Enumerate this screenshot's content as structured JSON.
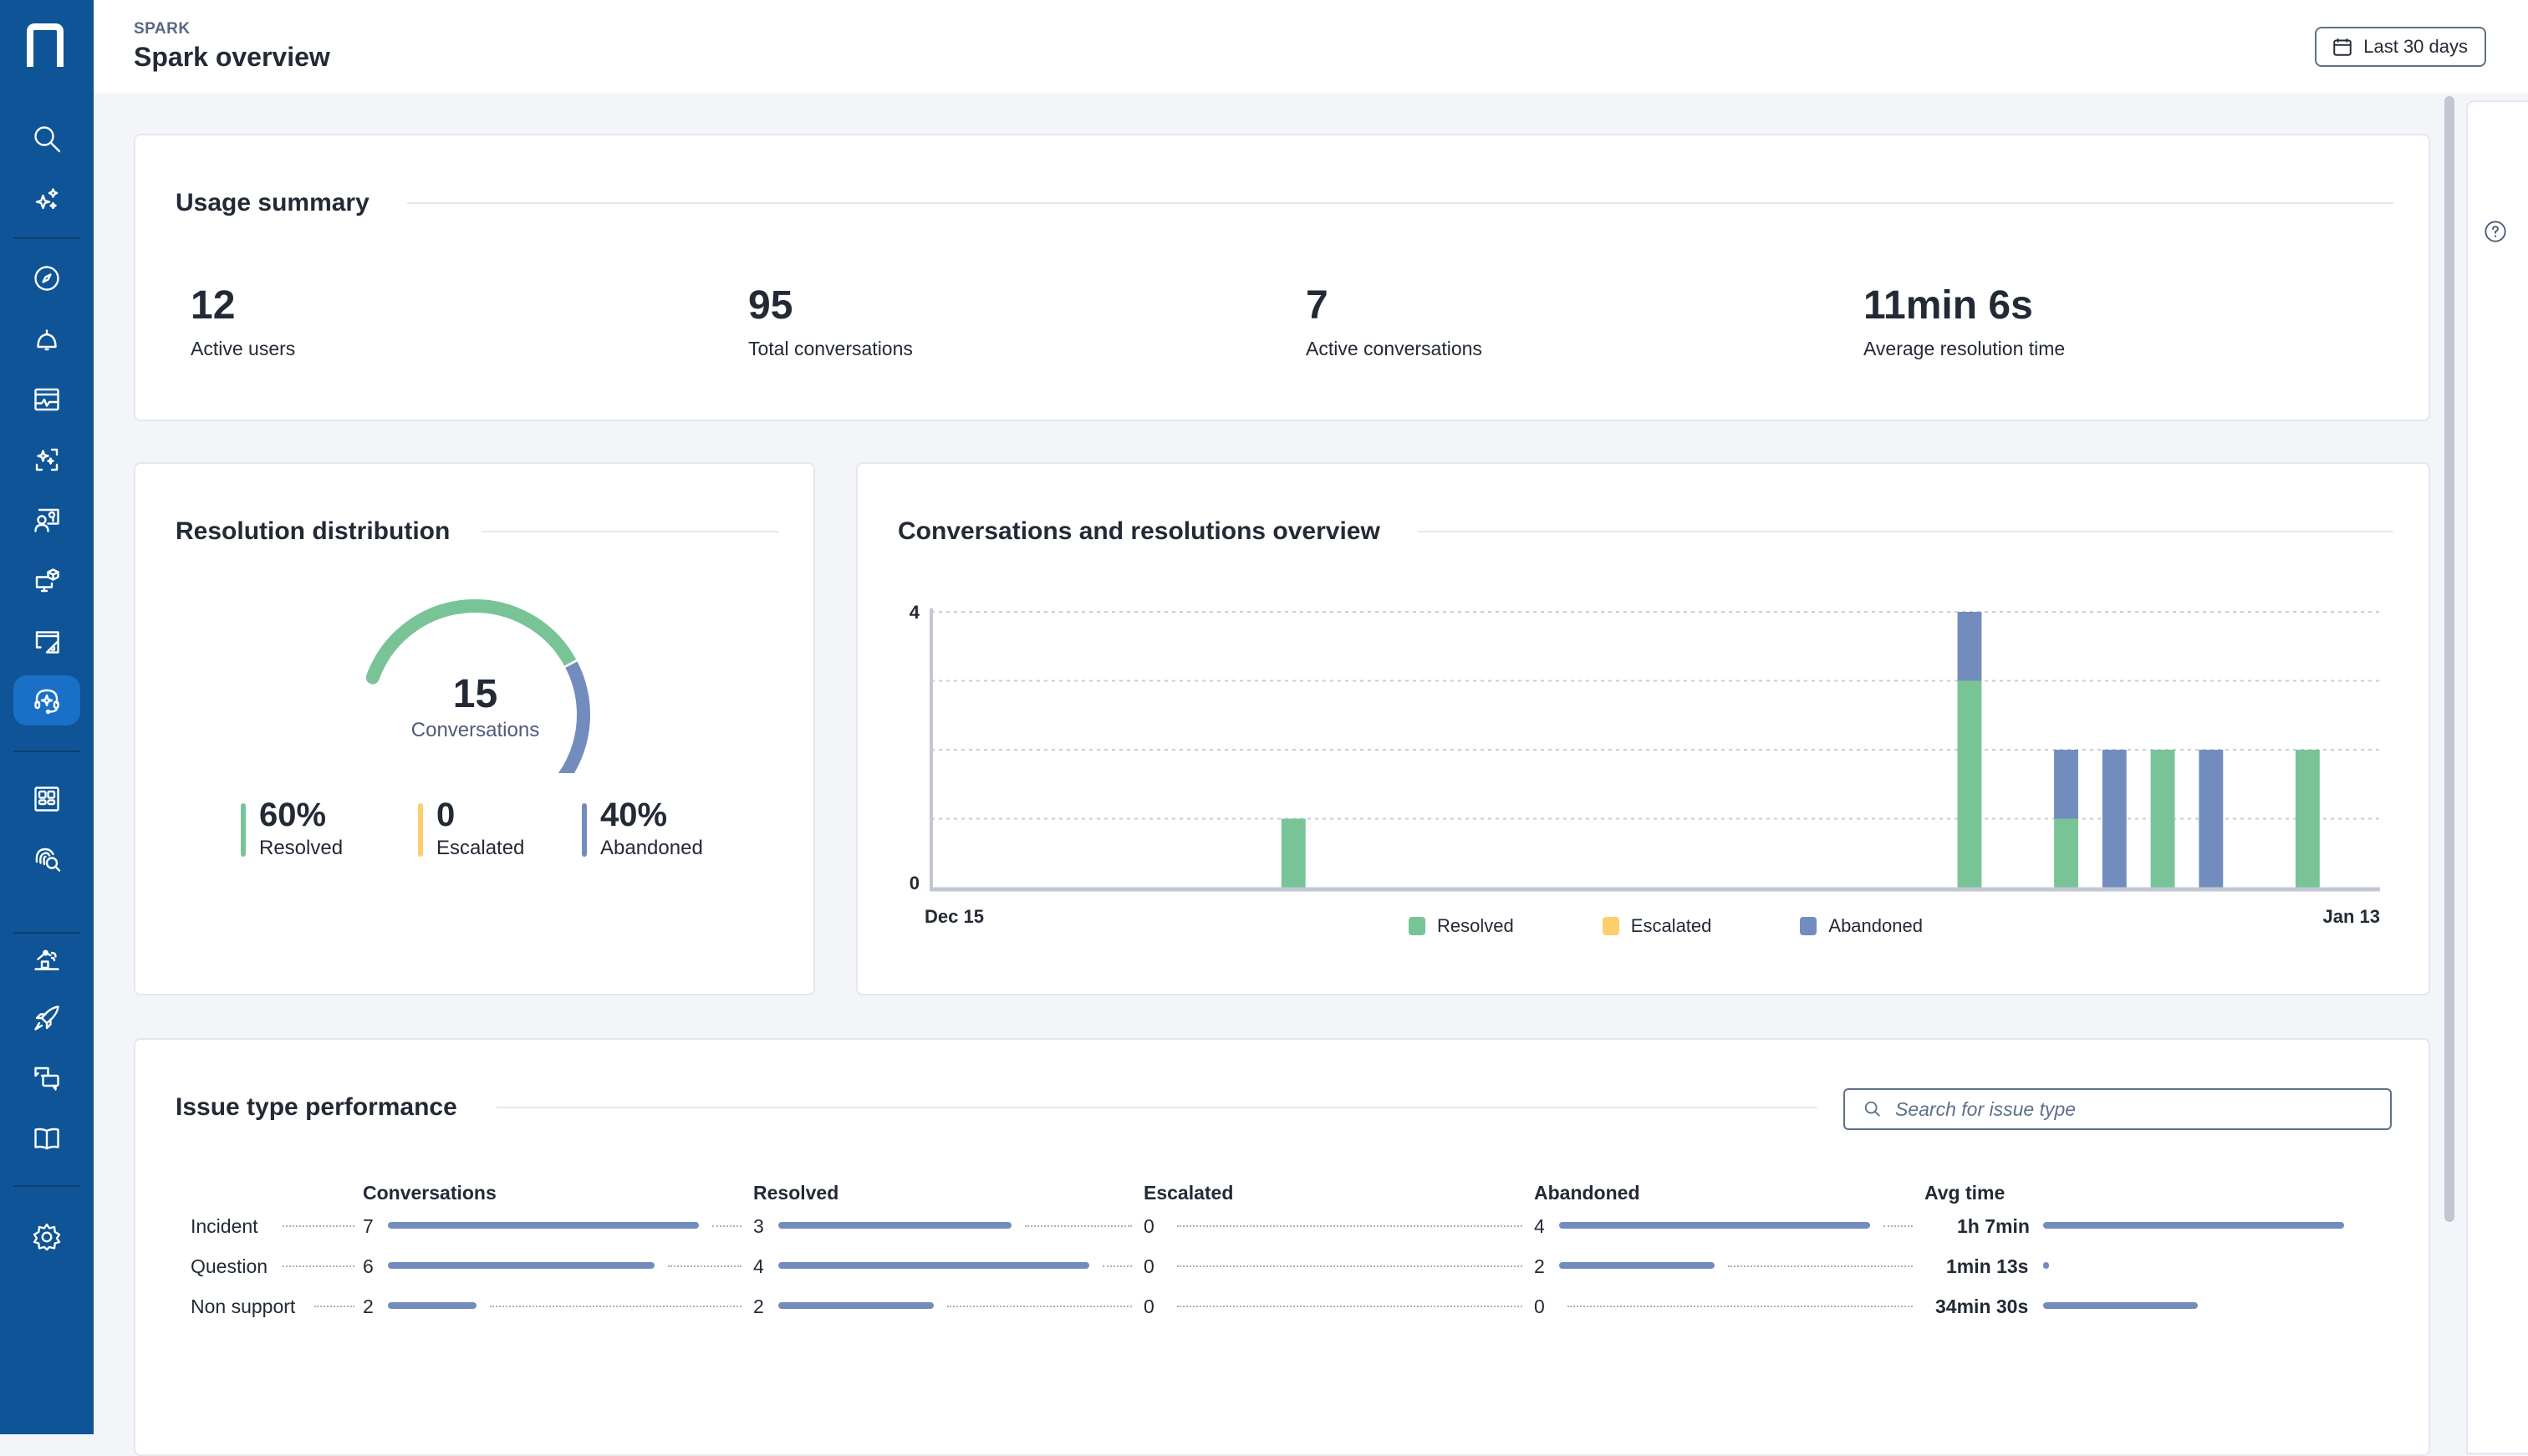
{
  "sidebar": {
    "logo": "n-logo",
    "active_item": "spark-headset",
    "items_top": [
      {
        "icon": "search-icon",
        "label": "Search"
      },
      {
        "icon": "sparkles-icon",
        "label": "AI assistant"
      }
    ],
    "items_main": [
      {
        "icon": "compass-icon"
      },
      {
        "icon": "bell-icon"
      },
      {
        "icon": "monitor-chart-icon"
      },
      {
        "icon": "sparkle-scan-icon"
      },
      {
        "icon": "user-screen-icon"
      },
      {
        "icon": "device-cube-icon"
      },
      {
        "icon": "window-ruler-icon"
      },
      {
        "icon": "headset-sparkle-icon"
      }
    ],
    "items_mid": [
      {
        "icon": "grid-icon"
      },
      {
        "icon": "fingerprint-search-icon"
      }
    ],
    "items_bottom": [
      {
        "icon": "robot-arm-icon"
      },
      {
        "icon": "rocket-icon"
      },
      {
        "icon": "chat-bubbles-icon"
      },
      {
        "icon": "book-icon"
      }
    ],
    "settings": {
      "icon": "gear-icon"
    }
  },
  "header": {
    "breadcrumb": "SPARK",
    "title": "Spark overview",
    "date_range": "Last 30 days"
  },
  "usage": {
    "title": "Usage summary",
    "stats": [
      {
        "value": "12",
        "label": "Active users"
      },
      {
        "value": "95",
        "label": "Total conversations"
      },
      {
        "value": "7",
        "label": "Active conversations"
      },
      {
        "value": "11min 6s",
        "label": "Average resolution time"
      }
    ]
  },
  "resolution": {
    "title": "Resolution distribution",
    "total": "15",
    "total_label": "Conversations",
    "segments": [
      {
        "value": "60%",
        "label": "Resolved",
        "fraction": 0.6,
        "color": "#79c497"
      },
      {
        "value": "0",
        "label": "Escalated",
        "fraction": 0.0,
        "color": "#fdce6c"
      },
      {
        "value": "40%",
        "label": "Abandoned",
        "fraction": 0.4,
        "color": "#728dbd"
      }
    ]
  },
  "chart_data": {
    "type": "bar",
    "stacked": true,
    "title": "Conversations and resolutions overview",
    "xlabel": "",
    "ylabel": "",
    "ylim": [
      0,
      4
    ],
    "y_ticks_labeled": [
      "0",
      "4"
    ],
    "gridlines": [
      0,
      1,
      2,
      3,
      4
    ],
    "grid": true,
    "x_tick_labels": [
      "Dec 15",
      "Jan 13"
    ],
    "legend_position": "bottom",
    "categories": [
      "Dec 15",
      "Dec 16",
      "Dec 17",
      "Dec 18",
      "Dec 19",
      "Dec 20",
      "Dec 21",
      "Dec 22",
      "Dec 23",
      "Dec 24",
      "Dec 25",
      "Dec 26",
      "Dec 27",
      "Dec 28",
      "Dec 29",
      "Dec 30",
      "Dec 31",
      "Jan 1",
      "Jan 2",
      "Jan 3",
      "Jan 4",
      "Jan 5",
      "Jan 6",
      "Jan 7",
      "Jan 8",
      "Jan 9",
      "Jan 10",
      "Jan 11",
      "Jan 12",
      "Jan 13"
    ],
    "series": [
      {
        "name": "Resolved",
        "color": "#79c497",
        "values": [
          0,
          0,
          0,
          0,
          0,
          0,
          0,
          1,
          0,
          0,
          0,
          0,
          0,
          0,
          0,
          0,
          0,
          0,
          0,
          0,
          0,
          3,
          0,
          1,
          0,
          2,
          0,
          0,
          2,
          0
        ]
      },
      {
        "name": "Escalated",
        "color": "#fdce6c",
        "values": [
          0,
          0,
          0,
          0,
          0,
          0,
          0,
          0,
          0,
          0,
          0,
          0,
          0,
          0,
          0,
          0,
          0,
          0,
          0,
          0,
          0,
          0,
          0,
          0,
          0,
          0,
          0,
          0,
          0,
          0
        ]
      },
      {
        "name": "Abandoned",
        "color": "#728dbd",
        "values": [
          0,
          0,
          0,
          0,
          0,
          0,
          0,
          0,
          0,
          0,
          0,
          0,
          0,
          0,
          0,
          0,
          0,
          0,
          0,
          0,
          0,
          1,
          0,
          1,
          2,
          0,
          2,
          0,
          0,
          0
        ]
      }
    ]
  },
  "issues": {
    "title": "Issue type performance",
    "search_placeholder": "Search for issue type",
    "search_value": "",
    "columns": [
      "Conversations",
      "Resolved",
      "Escalated",
      "Abandoned",
      "Avg time"
    ],
    "rows": [
      {
        "name": "Incident",
        "conversations": 7,
        "resolved": 3,
        "escalated": 0,
        "abandoned": 4,
        "avg_time": "1h 7min",
        "avg_time_seconds": 4020
      },
      {
        "name": "Question",
        "conversations": 6,
        "resolved": 4,
        "escalated": 0,
        "abandoned": 2,
        "avg_time": "1min 13s",
        "avg_time_seconds": 73
      },
      {
        "name": "Non support",
        "conversations": 2,
        "resolved": 2,
        "escalated": 0,
        "abandoned": 0,
        "avg_time": "34min 30s",
        "avg_time_seconds": 2070
      }
    ],
    "bar_color": "#728dbd"
  },
  "right_panel": {
    "help_icon": "help-circle-icon"
  }
}
